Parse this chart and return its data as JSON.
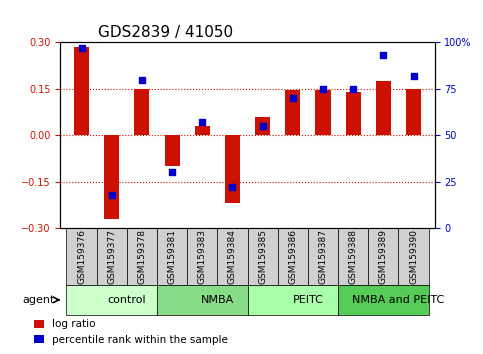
{
  "title": "GDS2839 / 41050",
  "samples": [
    "GSM159376",
    "GSM159377",
    "GSM159378",
    "GSM159381",
    "GSM159383",
    "GSM159384",
    "GSM159385",
    "GSM159386",
    "GSM159387",
    "GSM159388",
    "GSM159389",
    "GSM159390"
  ],
  "log_ratio": [
    0.285,
    -0.27,
    0.15,
    -0.1,
    0.03,
    -0.22,
    0.06,
    0.145,
    0.145,
    0.14,
    0.175,
    0.15
  ],
  "percentile_rank": [
    97,
    18,
    80,
    30,
    57,
    22,
    55,
    70,
    75,
    75,
    93,
    82
  ],
  "groups": [
    {
      "label": "control",
      "start": 0,
      "end": 3,
      "color": "#ccffcc"
    },
    {
      "label": "NMBA",
      "start": 3,
      "end": 6,
      "color": "#88dd88"
    },
    {
      "label": "PEITC",
      "start": 6,
      "end": 9,
      "color": "#aaffaa"
    },
    {
      "label": "NMBA and PEITC",
      "start": 9,
      "end": 12,
      "color": "#55cc55"
    }
  ],
  "bar_color": "#cc1100",
  "dot_color": "#0000cc",
  "ylim": [
    -0.3,
    0.3
  ],
  "y2lim": [
    0,
    100
  ],
  "yticks": [
    -0.3,
    -0.15,
    0,
    0.15,
    0.3
  ],
  "y2ticks": [
    0,
    25,
    50,
    75,
    100
  ],
  "hlines": [
    -0.15,
    0,
    0.15
  ],
  "bar_width": 0.5,
  "figsize": [
    4.83,
    3.54
  ],
  "dpi": 100,
  "legend_items": [
    {
      "label": "log ratio",
      "color": "#cc1100"
    },
    {
      "label": "percentile rank within the sample",
      "color": "#0000cc"
    }
  ],
  "agent_label": "agent",
  "title_fontsize": 11,
  "tick_fontsize": 7,
  "label_fontsize": 8,
  "group_fontsize": 8,
  "legend_fontsize": 7.5
}
